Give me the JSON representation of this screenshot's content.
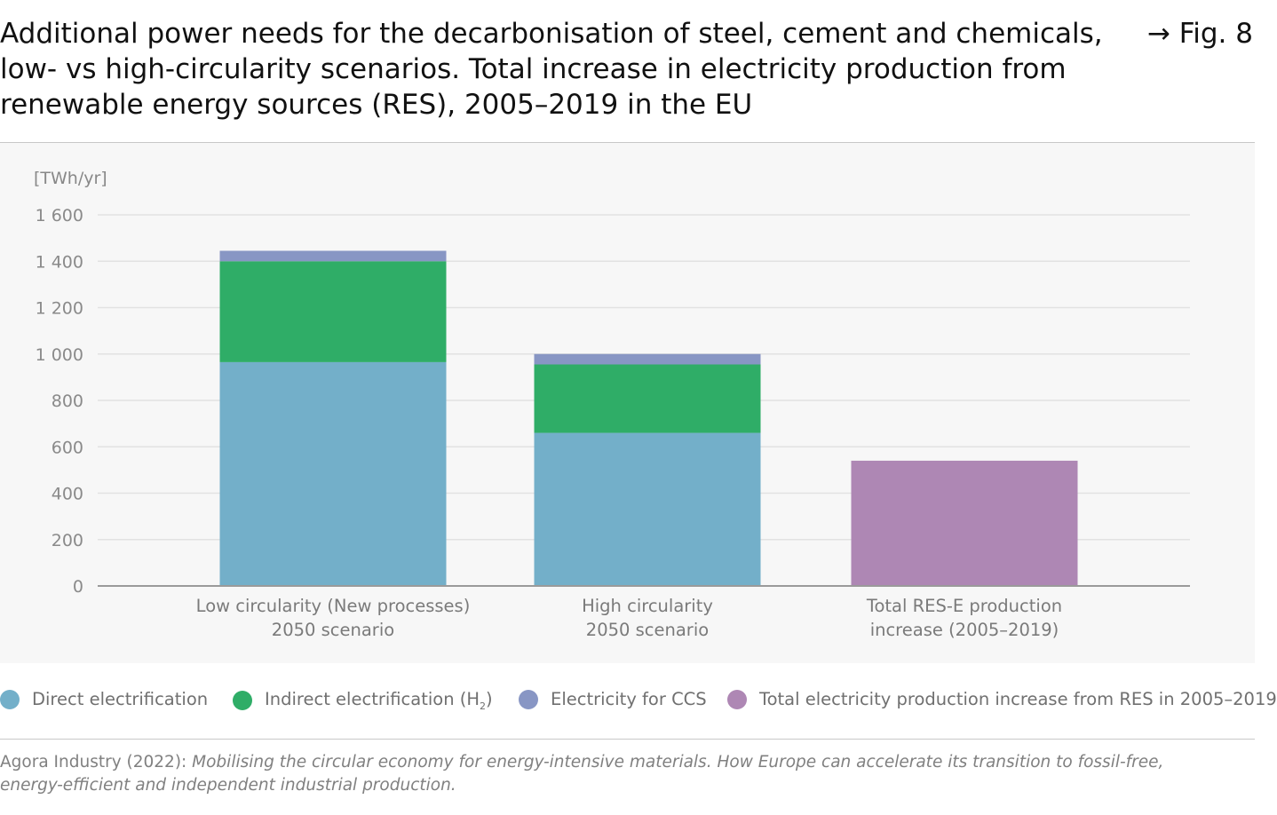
{
  "header": {
    "title_lines": [
      "Additional power needs for the decarbonisation of steel, cement and chemicals,",
      "low- vs high-circularity scenarios. Total increase in electricity production from",
      "renewable energy sources (RES), 2005–2019 in the EU"
    ],
    "fig_label": "→ Fig. 8"
  },
  "chart_data": {
    "type": "bar",
    "stacked": true,
    "unit_label": "[TWh/yr]",
    "ylim": [
      0,
      1600
    ],
    "yticks": [
      "0",
      "200",
      "400",
      "600",
      "800",
      "1 000",
      "1 200",
      "1 400",
      "1 600"
    ],
    "ytick_values": [
      0,
      200,
      400,
      600,
      800,
      1000,
      1200,
      1400,
      1600
    ],
    "grid": true,
    "categories": [
      [
        "Low circularity (New processes)",
        "2050 scenario"
      ],
      [
        "High circularity",
        "2050 scenario"
      ],
      [
        "Total RES-E production",
        "increase (2005–2019)"
      ]
    ],
    "series": [
      {
        "name": "Direct electrification",
        "color": "#73afc9",
        "values": [
          965,
          660,
          0
        ]
      },
      {
        "name": "Indirect electrification (H2)",
        "color": "#2fad67",
        "values": [
          435,
          295,
          0
        ]
      },
      {
        "name": "Electricity for CCS",
        "color": "#8896c4",
        "values": [
          45,
          45,
          0
        ]
      },
      {
        "name": "Total electricity production increase from RES in 2005–2019",
        "color": "#ae87b4",
        "values": [
          0,
          0,
          540
        ]
      }
    ],
    "legend_position": "bottom"
  },
  "legend": {
    "items": [
      {
        "label": "Direct electrification",
        "color": "#73afc9"
      },
      {
        "label_main": "Indirect electrification (H",
        "label_sub": "2",
        "label_end": ")",
        "color": "#2fad67"
      },
      {
        "label": "Electricity for CCS",
        "color": "#8896c4"
      },
      {
        "label": "Total electricity production increase from RES in 2005–2019",
        "color": "#ae87b4"
      }
    ]
  },
  "source": {
    "prefix": "Agora Industry (2022): ",
    "italic": "Mobilising the circular economy for energy-intensive materials. How Europe can accelerate its transition to fossil-free, energy-efficient and independent industrial production."
  }
}
